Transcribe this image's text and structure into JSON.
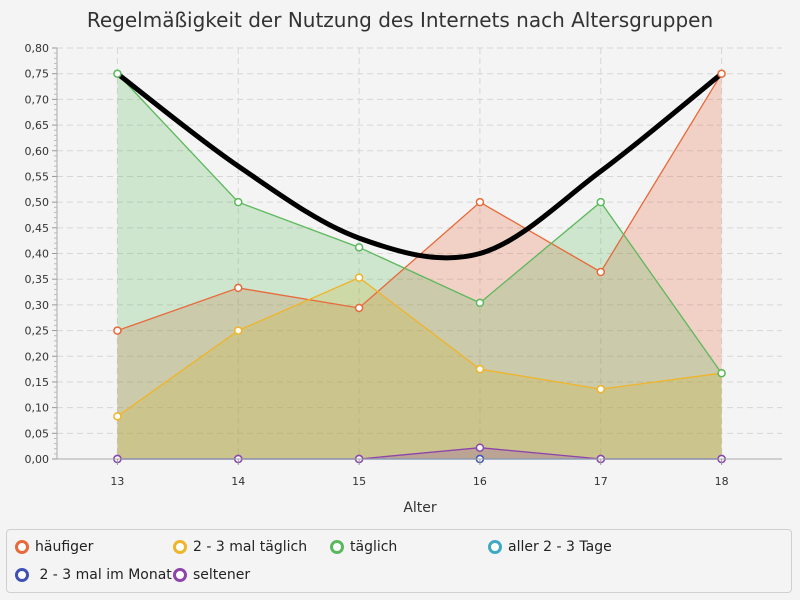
{
  "chart_data": {
    "type": "area",
    "title": "Regelmäßigkeit der Nutzung des Internets nach Altersgruppen",
    "xlabel": "Alter",
    "ylabel": "",
    "x": [
      13,
      14,
      15,
      16,
      17,
      18
    ],
    "x_ticks": [
      "13",
      "14",
      "15",
      "16",
      "17",
      "18"
    ],
    "xlim": [
      12.5,
      18.5
    ],
    "ylim": [
      0,
      0.8
    ],
    "y_ticks": [
      "0,00",
      "0,05",
      "0,10",
      "0,15",
      "0,20",
      "0,25",
      "0,30",
      "0,35",
      "0,40",
      "0,45",
      "0,50",
      "0,55",
      "0,60",
      "0,65",
      "0,70",
      "0,75",
      "0,80"
    ],
    "grid": true,
    "legend_position": "bottom",
    "series": [
      {
        "name": "häufiger",
        "color": "#e8693a",
        "values": [
          0.25,
          0.333,
          0.294,
          0.5,
          0.364,
          0.75
        ]
      },
      {
        "name": "2 - 3 mal täglich",
        "color": "#f0b429",
        "values": [
          0.083,
          0.25,
          0.353,
          0.175,
          0.136,
          0.167
        ]
      },
      {
        "name": "täglich",
        "color": "#5cb85c",
        "values": [
          0.75,
          0.5,
          0.412,
          0.304,
          0.5,
          0.167
        ]
      },
      {
        "name": "aller 2 - 3 Tage",
        "color": "#3fa9c5",
        "values": [
          0,
          0,
          0,
          0,
          0,
          0
        ]
      },
      {
        "name": " 2 - 3 mal im Monat",
        "color": "#3f51b5",
        "values": [
          0,
          0,
          0,
          0,
          0,
          0
        ]
      },
      {
        "name": "seltener",
        "color": "#8e44ad",
        "values": [
          0,
          0,
          0,
          0.022,
          0,
          0
        ]
      }
    ],
    "overlay_curve": {
      "color": "#000000",
      "values": [
        0.75,
        0.57,
        0.43,
        0.4,
        0.56,
        0.75
      ]
    }
  }
}
